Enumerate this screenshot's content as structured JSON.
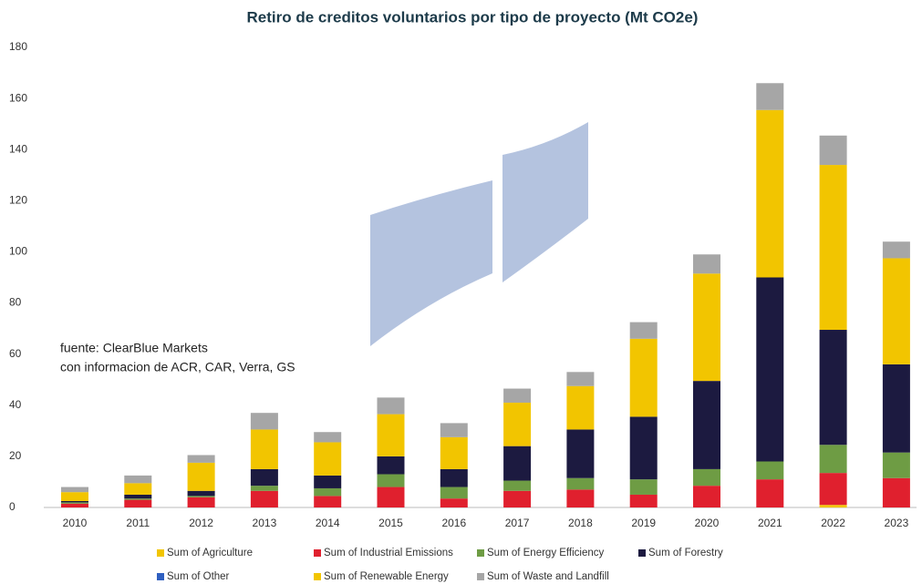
{
  "chart_data": {
    "type": "stacked_bar",
    "title": "Retiro de creditos voluntarios por tipo de proyecto (Mt CO2e)",
    "annotations": [
      "fuente: ClearBlue Markets",
      "con informacion de ACR, CAR, Verra, GS"
    ],
    "categories": [
      "2010",
      "2011",
      "2012",
      "2013",
      "2014",
      "2015",
      "2016",
      "2017",
      "2018",
      "2019",
      "2020",
      "2021",
      "2022",
      "2023"
    ],
    "series": [
      {
        "name": "Sum of Agriculture",
        "color": "#f2c500",
        "values": [
          0,
          0,
          0,
          0,
          0,
          0,
          0,
          0,
          0,
          0,
          0,
          0,
          1,
          0
        ]
      },
      {
        "name": "Sum of Industrial Emissions",
        "color": "#e0202e",
        "values": [
          1.5,
          3,
          4,
          6.5,
          4.5,
          8,
          3.5,
          6.5,
          7,
          5,
          8.5,
          11,
          12.5,
          11.5
        ]
      },
      {
        "name": "Sum of Energy Efficiency",
        "color": "#6e9c44",
        "values": [
          0.5,
          0.5,
          0.5,
          2,
          3,
          5,
          4.5,
          4,
          4.5,
          6,
          6.5,
          7,
          11,
          10
        ]
      },
      {
        "name": "Sum of Forestry",
        "color": "#1c1a40",
        "values": [
          0.5,
          1.5,
          2,
          6.5,
          5,
          7,
          7,
          13.5,
          19,
          24.5,
          34.5,
          72,
          45,
          34.5
        ]
      },
      {
        "name": "Sum of Other",
        "color": "#2f5fc0",
        "values": [
          0,
          0,
          0,
          0,
          0,
          0,
          0,
          0,
          0,
          0,
          0,
          0,
          0,
          0
        ]
      },
      {
        "name": "Sum of Renewable Energy",
        "color": "#f2c500",
        "values": [
          3.5,
          4.5,
          11,
          15.5,
          13,
          16.5,
          12.5,
          17,
          17,
          30.5,
          42,
          65.5,
          64.5,
          41.5
        ]
      },
      {
        "name": "Sum of Waste and Landfill",
        "color": "#a6a6a6",
        "values": [
          2,
          3,
          3,
          6.5,
          4,
          6.5,
          5.5,
          5.5,
          5.5,
          6.5,
          7.5,
          10.5,
          11.5,
          6.5
        ]
      }
    ],
    "ylim": [
      0,
      180
    ],
    "yticks": [
      0,
      20,
      40,
      60,
      80,
      100,
      120,
      140,
      160,
      180
    ]
  }
}
